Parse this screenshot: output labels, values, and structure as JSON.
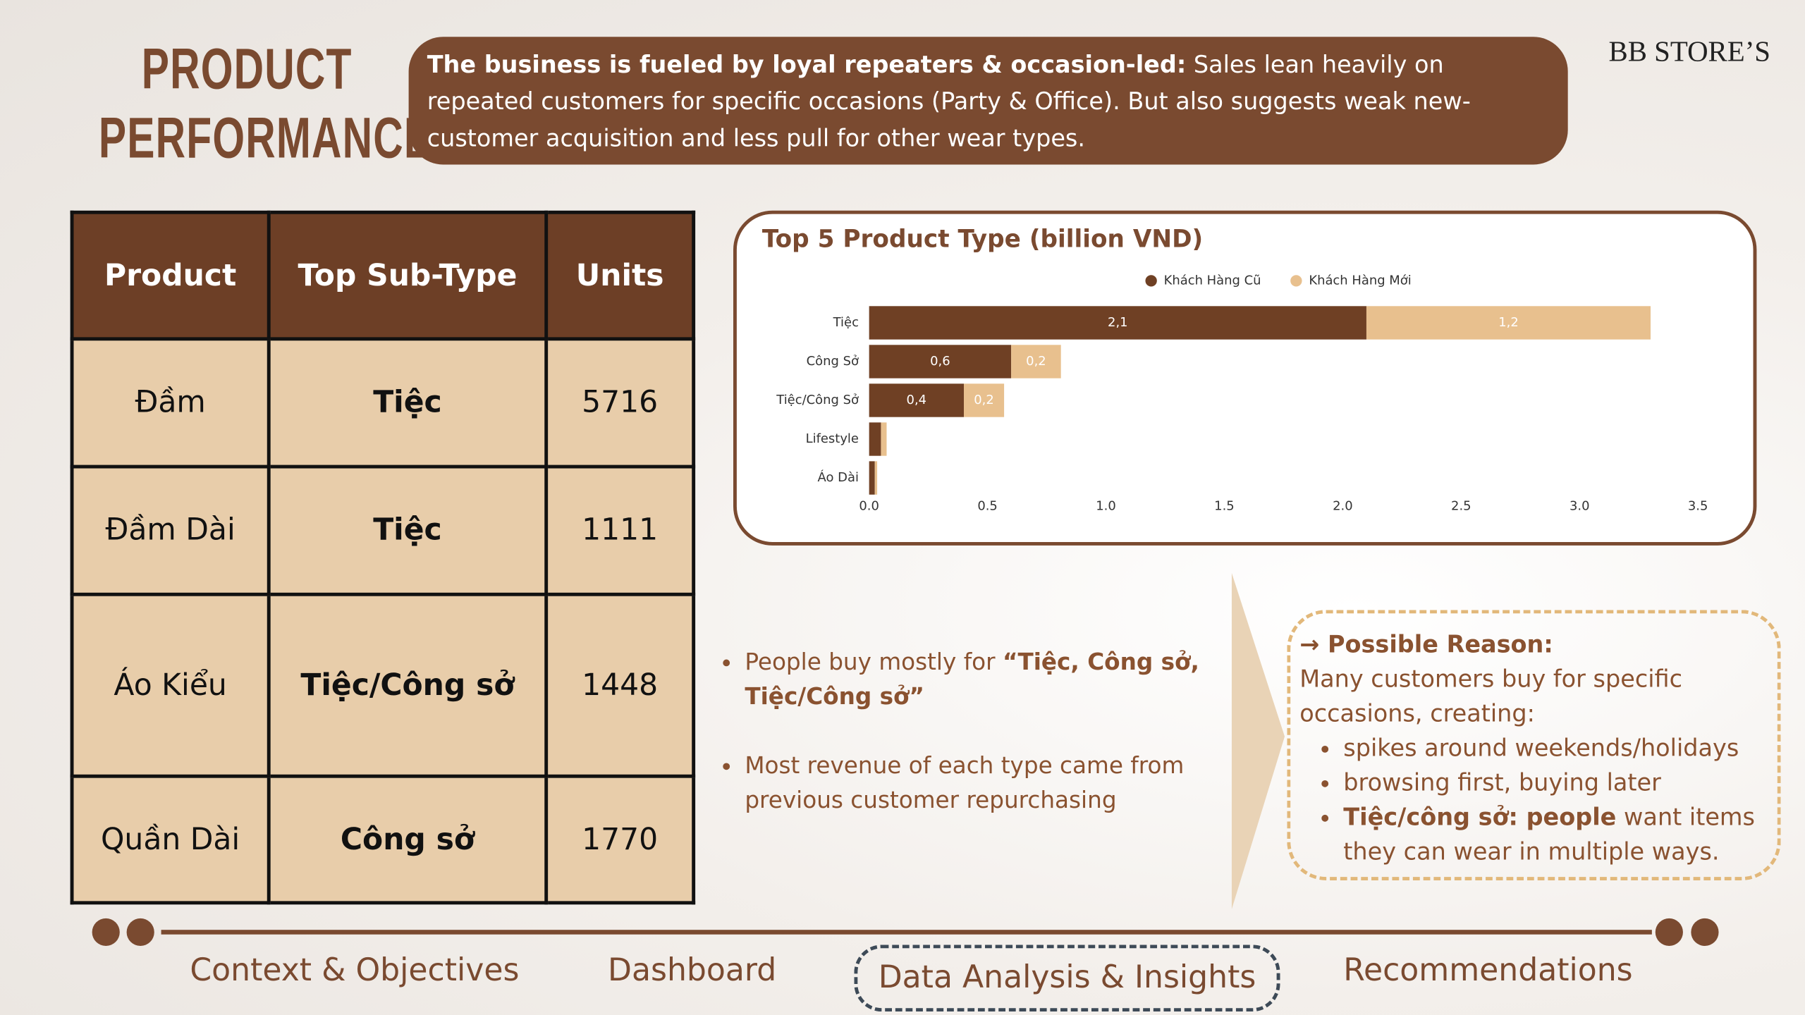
{
  "header": {
    "title_line1": "PRODUCT",
    "title_line2": "PERFORMANCE",
    "brand": "BB STORE’S",
    "summary_bold": "The business is fueled by loyal repeaters & occasion-led:",
    "summary_text": "Sales lean heavily on repeated customers for specific occasions (Party & Office). But also suggests weak new-customer acquisition and less pull for other wear types."
  },
  "table": {
    "header": [
      "Product",
      "Top Sub-Type",
      "Units"
    ],
    "rows": [
      [
        "Đầm",
        "Tiệc",
        5716
      ],
      [
        "Đầm Dài",
        "Tiệc",
        1111
      ],
      [
        "Áo Kiểu",
        "Tiệc/Công sở",
        1448
      ],
      [
        "Quần Dài",
        "Công sở",
        1770
      ]
    ]
  },
  "chart_data": {
    "type": "stacked-bar-horizontal",
    "title": "Top 5 Product Type (billion VND)",
    "categories": [
      "Tiệc",
      "Công Sở",
      "Tiệc/Công Sở",
      "Lifestyle",
      "Áo Dài"
    ],
    "series": [
      {
        "name": "Khách Hàng Cũ",
        "color": "#6f4024",
        "values": [
          2.1,
          0.6,
          0.4,
          0.05,
          0.024
        ],
        "value_labels": [
          "2,1",
          "0,6",
          "0,4",
          null,
          null
        ]
      },
      {
        "name": "Khách Hàng Mới",
        "color": "#e8c08e",
        "values": [
          1.2,
          0.21,
          0.17,
          0.024,
          0.01
        ],
        "value_labels": [
          "1,2",
          "0,2",
          "0,2",
          null,
          null
        ]
      }
    ],
    "xlim": [
      0,
      3.5
    ],
    "xticks": [
      {
        "value": 0,
        "label": "0.0"
      },
      0.5,
      {
        "value": 1,
        "label": "1.0"
      },
      1.5,
      {
        "value": 2,
        "label": "2.0"
      },
      2.5,
      {
        "value": 3,
        "label": "3.0"
      },
      3.5
    ],
    "legend": "top",
    "grid": false
  },
  "insights": {
    "bullet1_text": "People buy mostly for",
    "bullet1_bold": "“Tiệc, Công sở, Tiệc/Công sở”",
    "bullet2": "Most revenue of each type came from previous customer repurchasing"
  },
  "reason": {
    "title": "→ Possible Reason:",
    "intro": "Many customers buy for specific occasions, creating:",
    "items": [
      "spikes around weekends/holidays",
      "browsing first, buying later"
    ],
    "item3_bold": "Tiệc/công sở: people",
    "item3_text": "want items they can wear in multiple ways."
  },
  "nav": [
    "Context & Objectives",
    "Dashboard",
    "Data Analysis & Insights",
    "Recommendations"
  ]
}
